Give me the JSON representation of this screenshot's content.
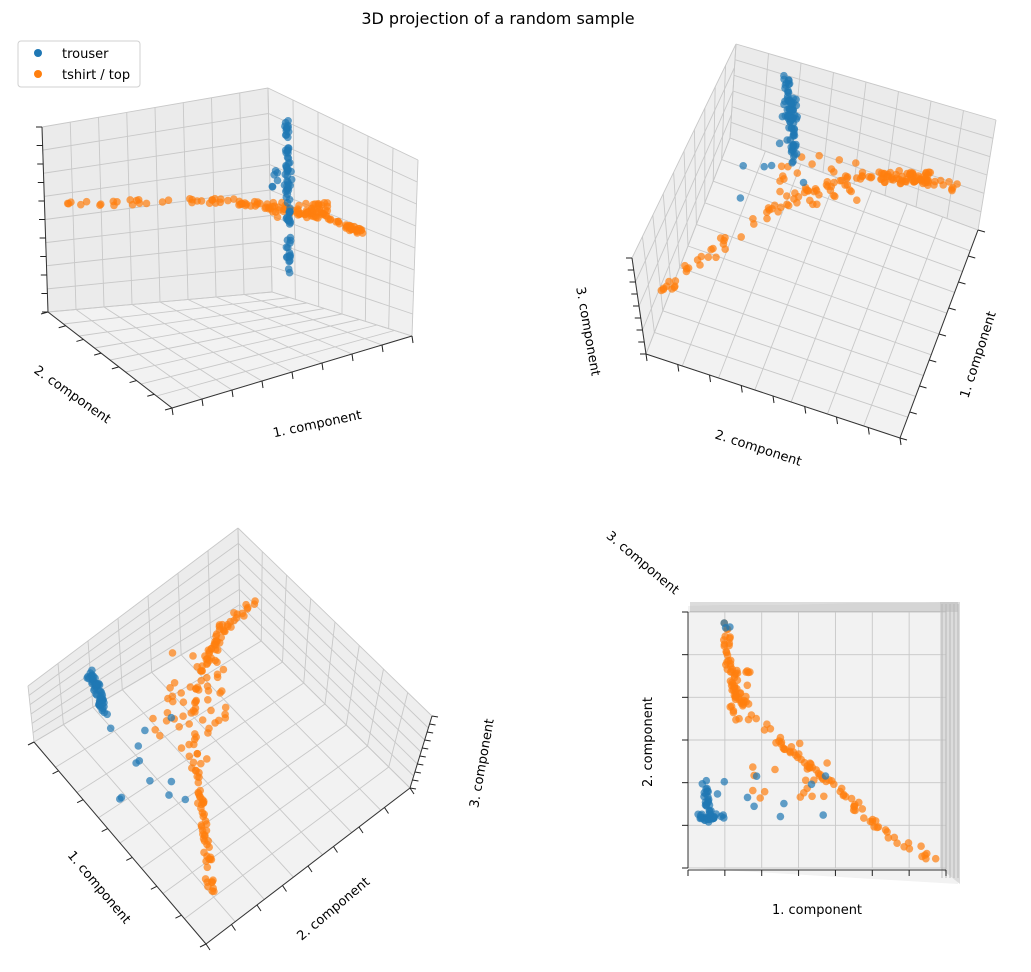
{
  "chart_data": {
    "type": "scatter",
    "title": "3D projection of a random sample",
    "legend": {
      "placement": "top-left",
      "entries": [
        {
          "label": "trouser",
          "color": "#1f77b4"
        },
        {
          "label": "tshirt / top",
          "color": "#ff7f0e"
        }
      ]
    },
    "series": [
      {
        "name": "trouser",
        "color": "#1f77b4",
        "marker": "circle",
        "alpha": 0.7
      },
      {
        "name": "tshirt / top",
        "color": "#ff7f0e",
        "marker": "circle",
        "alpha": 0.7
      }
    ],
    "subplots": [
      {
        "id": "top-left",
        "xlabel": "1. component",
        "ylabel": "2. component",
        "zlabel": "",
        "view": "elev 20, azim 60"
      },
      {
        "id": "top-right",
        "xlabel": "1. component",
        "ylabel": "2. component",
        "zlabel": "3. component",
        "view": "elev 60, azim 20"
      },
      {
        "id": "bottom-left",
        "xlabel": "1. component",
        "ylabel": "2. component",
        "zlabel": "3. component",
        "view": "elev 60, azim 45"
      },
      {
        "id": "bottom-right",
        "xlabel": "1. component",
        "ylabel": "2. component",
        "zlabel": "3. component",
        "view": "top-down"
      }
    ],
    "grid": true
  }
}
